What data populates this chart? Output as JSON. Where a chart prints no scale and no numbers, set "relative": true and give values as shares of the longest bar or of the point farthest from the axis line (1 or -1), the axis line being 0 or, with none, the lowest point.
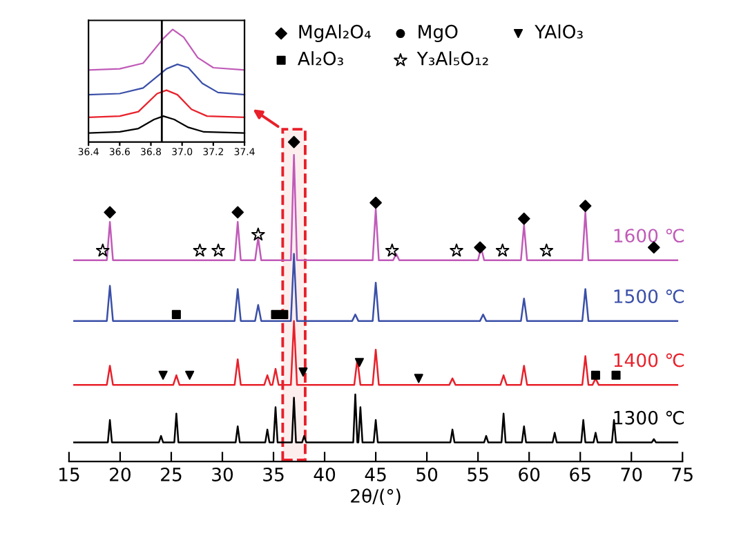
{
  "chart_data": [
    {
      "type": "line",
      "relative": true,
      "xlabel": "2θ/(°)",
      "xlim": [
        15,
        75
      ],
      "xticks": [
        15,
        20,
        25,
        30,
        35,
        40,
        45,
        50,
        55,
        60,
        65,
        70,
        75
      ],
      "tick_labels": "x",
      "legend": "top right",
      "bands": [
        {
          "axis": "x",
          "from": 35.9,
          "to": 38.1,
          "color": "#e8202a"
        }
      ],
      "series": [
        {
          "name": "1600 ℃",
          "color": "#c05ab8",
          "x": [
            15.5,
            18.7,
            19,
            19.3,
            31.2,
            31.5,
            31.8,
            33.2,
            33.5,
            33.8,
            36.7,
            37,
            37.3,
            44.7,
            45,
            45.3,
            46.7,
            47,
            47.3,
            55,
            55.3,
            55.6,
            59.2,
            59.5,
            59.8,
            65.2,
            65.5,
            65.8,
            74.5
          ],
          "values": [
            0.63,
            0.63,
            0.75,
            0.63,
            0.63,
            0.75,
            0.63,
            0.63,
            0.7,
            0.63,
            0.63,
            0.96,
            0.63,
            0.63,
            0.79,
            0.63,
            0.63,
            0.65,
            0.63,
            0.63,
            0.67,
            0.63,
            0.63,
            0.74,
            0.63,
            0.63,
            0.78,
            0.63,
            0.63
          ]
        },
        {
          "name": "1500 ℃",
          "color": "#3a4fa8",
          "x": [
            15.5,
            18.7,
            19,
            19.3,
            31.2,
            31.5,
            31.8,
            33.2,
            33.5,
            33.8,
            36.7,
            37,
            37.3,
            42.7,
            43,
            43.3,
            44.7,
            45,
            45.3,
            55.2,
            55.5,
            55.8,
            59.2,
            59.5,
            59.8,
            65.2,
            65.5,
            65.8,
            74.5
          ],
          "values": [
            0.44,
            0.44,
            0.55,
            0.44,
            0.44,
            0.54,
            0.44,
            0.44,
            0.49,
            0.44,
            0.44,
            0.65,
            0.44,
            0.44,
            0.46,
            0.44,
            0.44,
            0.56,
            0.44,
            0.44,
            0.46,
            0.44,
            0.44,
            0.51,
            0.44,
            0.44,
            0.54,
            0.44,
            0.44
          ]
        },
        {
          "name": "1400 ℃",
          "color": "#e8202a",
          "x": [
            15.5,
            18.7,
            19,
            19.3,
            25.2,
            25.5,
            25.8,
            31.2,
            31.5,
            31.8,
            34.1,
            34.4,
            34.7,
            34.9,
            35.2,
            35.5,
            36.7,
            37,
            37.3,
            42.9,
            43.2,
            43.5,
            44.7,
            45,
            45.3,
            52.2,
            52.5,
            52.8,
            57.2,
            57.5,
            57.8,
            59.2,
            59.5,
            59.8,
            65.2,
            65.5,
            65.8,
            66.2,
            66.5,
            66.8,
            74.5
          ],
          "values": [
            0.24,
            0.24,
            0.3,
            0.24,
            0.24,
            0.27,
            0.24,
            0.24,
            0.32,
            0.24,
            0.24,
            0.27,
            0.24,
            0.24,
            0.29,
            0.24,
            0.24,
            0.44,
            0.24,
            0.24,
            0.32,
            0.24,
            0.24,
            0.35,
            0.24,
            0.24,
            0.26,
            0.24,
            0.24,
            0.27,
            0.24,
            0.24,
            0.3,
            0.24,
            0.24,
            0.33,
            0.24,
            0.24,
            0.26,
            0.24,
            0.24
          ]
        },
        {
          "name": "1300 ℃",
          "color": "#000000",
          "x": [
            15.5,
            18.8,
            19,
            19.2,
            23.8,
            24,
            24.2,
            25.3,
            25.5,
            25.7,
            31.3,
            31.5,
            31.7,
            34.2,
            34.4,
            34.6,
            35,
            35.2,
            35.4,
            36.8,
            37,
            37.2,
            37.8,
            38,
            38.2,
            42.8,
            43,
            43.2,
            43.3,
            43.5,
            43.7,
            44.8,
            45,
            45.2,
            52.3,
            52.5,
            52.7,
            55.6,
            55.8,
            56,
            57.3,
            57.5,
            57.7,
            59.3,
            59.5,
            59.7,
            62.3,
            62.5,
            62.7,
            65.1,
            65.3,
            65.5,
            66.3,
            66.5,
            66.7,
            68.1,
            68.3,
            68.5,
            72,
            72.2,
            72.4,
            74.5
          ],
          "values": [
            0.06,
            0.06,
            0.13,
            0.06,
            0.06,
            0.08,
            0.06,
            0.06,
            0.15,
            0.06,
            0.06,
            0.11,
            0.06,
            0.06,
            0.1,
            0.06,
            0.06,
            0.17,
            0.06,
            0.06,
            0.2,
            0.06,
            0.06,
            0.08,
            0.06,
            0.06,
            0.21,
            0.06,
            0.06,
            0.17,
            0.06,
            0.06,
            0.13,
            0.06,
            0.06,
            0.1,
            0.06,
            0.06,
            0.08,
            0.06,
            0.06,
            0.15,
            0.06,
            0.06,
            0.11,
            0.06,
            0.06,
            0.09,
            0.06,
            0.06,
            0.13,
            0.06,
            0.06,
            0.09,
            0.06,
            0.06,
            0.13,
            0.06,
            0.06,
            0.07,
            0.06,
            0.06
          ]
        },
        {
          "type": "scatter",
          "name": "MgAl₂O₄",
          "marker": "diamond",
          "color": "#000000",
          "x": [
            19,
            31.5,
            37,
            45,
            55.2,
            59.5,
            65.5,
            72.2
          ],
          "values": [
            0.78,
            0.78,
            1.0,
            0.81,
            0.67,
            0.76,
            0.8,
            0.67
          ]
        },
        {
          "type": "scatter",
          "name": "Al₂O₃",
          "marker": "square",
          "color": "#000000",
          "x": [
            25.5,
            35.2,
            36.0,
            66.5,
            68.5
          ],
          "values": [
            0.46,
            0.46,
            0.46,
            0.27,
            0.27
          ]
        },
        {
          "type": "scatter",
          "name": "MgO",
          "marker": "circle",
          "color": "#000000"
        },
        {
          "type": "scatter",
          "name": "Y₃Al₅O₁₂",
          "marker": "star",
          "color": "#000000",
          "x": [
            18.3,
            27.8,
            29.6,
            33.5,
            46.6,
            52.9,
            57.4,
            61.7
          ],
          "values": [
            0.66,
            0.66,
            0.66,
            0.71,
            0.66,
            0.66,
            0.66,
            0.66
          ]
        },
        {
          "type": "scatter",
          "name": "YAlO₃",
          "marker": "triangle",
          "color": "#000000",
          "x": [
            24.2,
            26.8,
            37.9,
            43.4,
            49.2
          ],
          "values": [
            0.27,
            0.27,
            0.28,
            0.31,
            0.26
          ]
        }
      ]
    },
    {
      "type": "line",
      "relative": true,
      "xlim": [
        36.4,
        37.4
      ],
      "xticks": [
        {
          "value": 36.4,
          "label": "36.4"
        },
        {
          "value": 36.6,
          "label": "36.6"
        },
        {
          "value": 36.8,
          "label": "36.8"
        },
        {
          "value": 37.0,
          "label": "37.0"
        },
        {
          "value": 37.2,
          "label": "37.2"
        },
        {
          "value": 37.4,
          "label": "37.4"
        }
      ],
      "tick_labels": "x",
      "ref_lines": [
        {
          "axis": "x",
          "value": 36.87,
          "color": "#000000"
        }
      ],
      "series": [
        {
          "color": "#c05ab8",
          "x": [
            36.4,
            36.6,
            36.75,
            36.88,
            36.94,
            37.01,
            37.1,
            37.2,
            37.4
          ],
          "values": [
            0.64,
            0.65,
            0.7,
            0.92,
            1.0,
            0.93,
            0.75,
            0.66,
            0.64
          ]
        },
        {
          "color": "#3a4fa8",
          "x": [
            36.4,
            36.6,
            36.75,
            36.9,
            36.97,
            37.04,
            37.13,
            37.23,
            37.4
          ],
          "values": [
            0.42,
            0.43,
            0.48,
            0.65,
            0.69,
            0.66,
            0.52,
            0.44,
            0.42
          ]
        },
        {
          "color": "#e8202a",
          "x": [
            36.4,
            36.6,
            36.72,
            36.84,
            36.9,
            36.97,
            37.06,
            37.16,
            37.4
          ],
          "values": [
            0.22,
            0.23,
            0.27,
            0.43,
            0.46,
            0.42,
            0.29,
            0.23,
            0.22
          ]
        },
        {
          "color": "#000000",
          "x": [
            36.4,
            36.6,
            36.72,
            36.82,
            36.88,
            36.95,
            37.04,
            37.14,
            37.4
          ],
          "values": [
            0.08,
            0.09,
            0.12,
            0.2,
            0.23,
            0.2,
            0.13,
            0.09,
            0.08
          ]
        }
      ]
    }
  ]
}
